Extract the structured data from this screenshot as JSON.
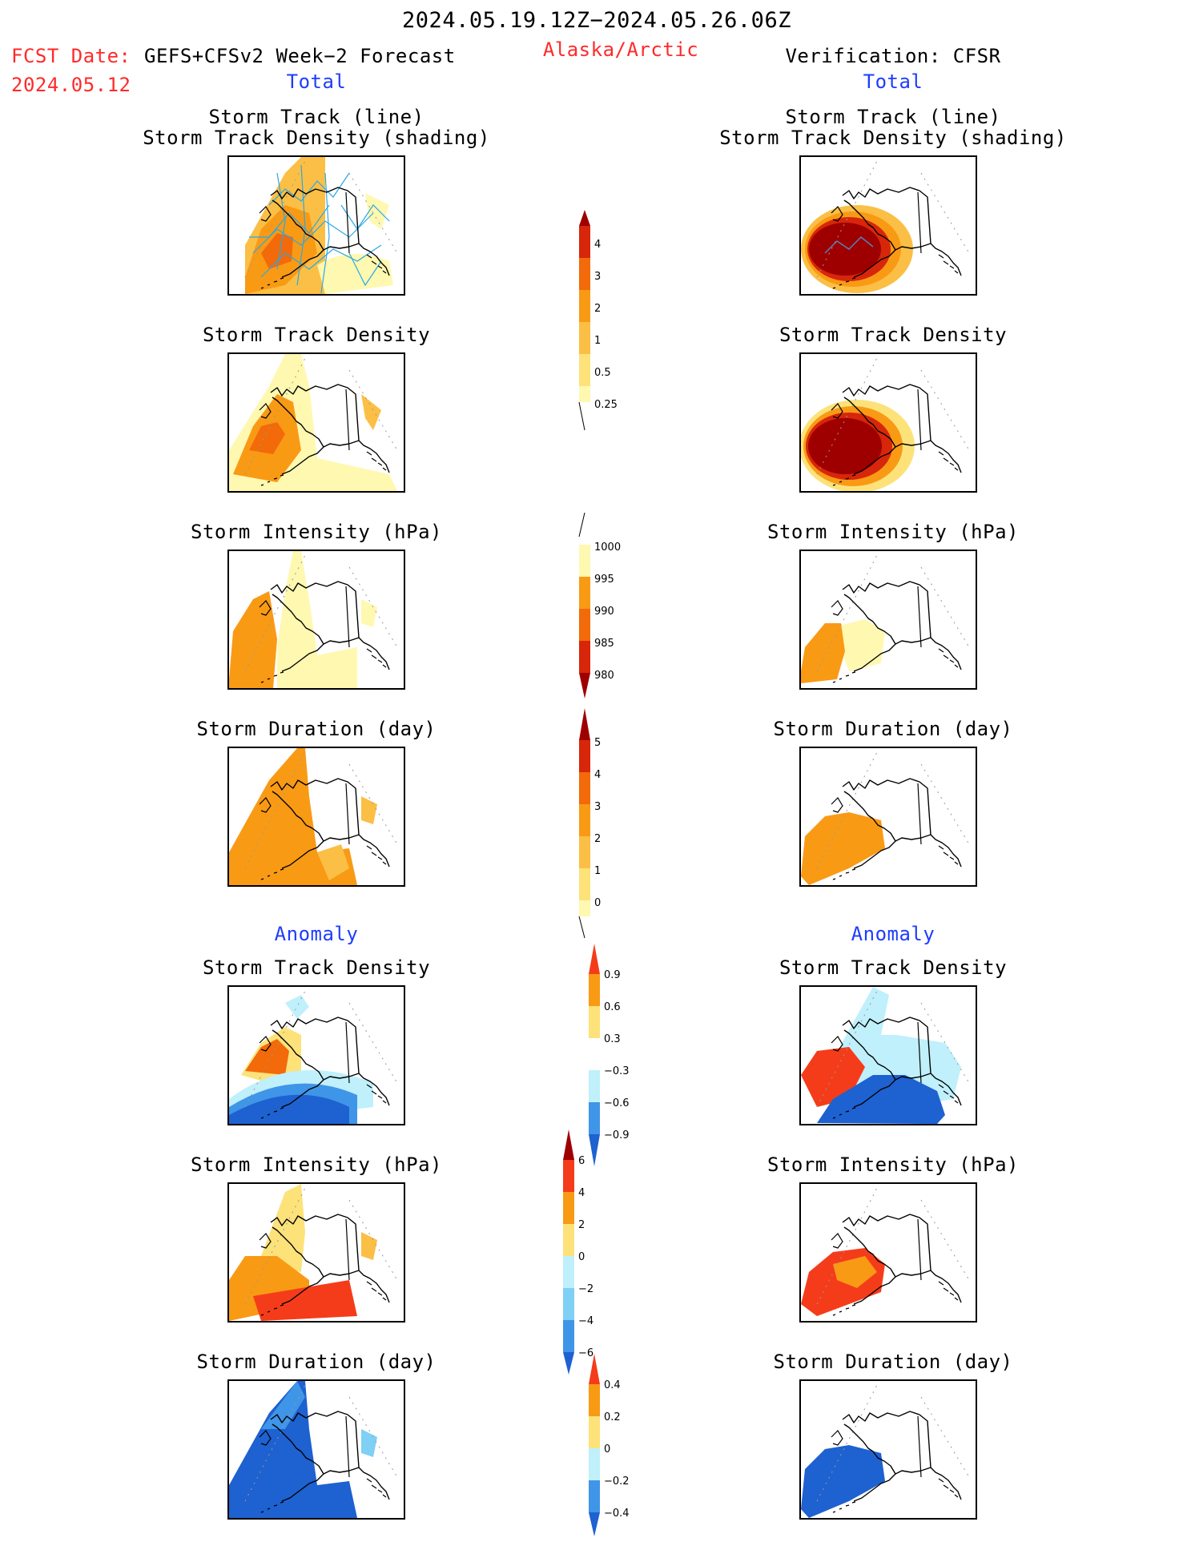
{
  "header": {
    "date_range": "2024.05.19.12Z−2024.05.26.06Z",
    "region": "Alaska/Arctic",
    "fcst_label": "FCST Date:",
    "fcst_model": "GEFS+CFSv2 Week−2 Forecast",
    "fcst_date": "2024.05.12",
    "verification": "Verification: CFSR"
  },
  "sections": {
    "total": "Total",
    "anomaly": "Anomaly"
  },
  "panel_titles": {
    "track_line": "Storm Track (line)",
    "track_density_shading": "Storm Track Density (shading)",
    "track_density": "Storm Track Density",
    "intensity": "Storm Intensity (hPa)",
    "duration": "Storm Duration (day)"
  },
  "colorbars": {
    "density_total": [
      "0.25",
      "0.5",
      "1",
      "2",
      "3",
      "4"
    ],
    "intensity_total": [
      "1000",
      "995",
      "990",
      "985",
      "980"
    ],
    "duration_total": [
      "0",
      "1",
      "2",
      "3",
      "4",
      "5"
    ],
    "density_anomaly": [
      "0.9",
      "0.6",
      "0.3",
      "−0.3",
      "−0.6",
      "−0.9"
    ],
    "intensity_anomaly": [
      "6",
      "4",
      "2",
      "0",
      "−2",
      "−4",
      "−6"
    ],
    "duration_anomaly": [
      "0.4",
      "0.2",
      "0",
      "−0.2",
      "−0.4"
    ]
  },
  "colors": {
    "title_red": "#ff2a2a",
    "title_blue": "#1f3cff",
    "warm_scale": [
      "#fff8b0",
      "#fde27a",
      "#fbbf45",
      "#f99a15",
      "#f26a0a",
      "#d7260a",
      "#9e0000"
    ],
    "cool_scale": [
      "#bff0fb",
      "#7fd0f5",
      "#3f95e8",
      "#1e61d0"
    ],
    "track_line": "#2aa8e6"
  }
}
